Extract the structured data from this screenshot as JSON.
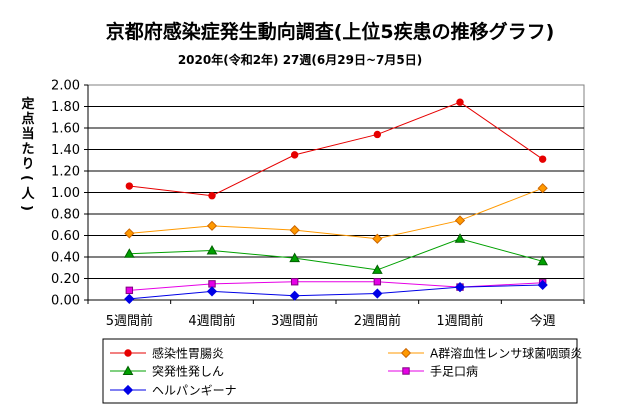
{
  "chart_data": {
    "type": "line",
    "title": "京都府感染症発生動向調査(上位5疾患の推移グラフ)",
    "subtitle": "2020年(令和2年) 27週(6月29日~7月5日)",
    "ylabel": "定点当たり(人)",
    "xlabel": "",
    "categories": [
      "5週間前",
      "4週間前",
      "3週間前",
      "2週間前",
      "1週間前",
      "今週"
    ],
    "yticks": [
      "0.00",
      "0.20",
      "0.40",
      "0.60",
      "0.80",
      "1.00",
      "1.20",
      "1.40",
      "1.60",
      "1.80",
      "2.00"
    ],
    "ylim": [
      0,
      2.0
    ],
    "grid": "horizontal",
    "legend_position": "bottom",
    "series": [
      {
        "name": "感染性胃腸炎",
        "color": "#e60000",
        "marker": "circle",
        "values": [
          1.06,
          0.97,
          1.35,
          1.54,
          1.84,
          1.31
        ]
      },
      {
        "name": "A群溶血性レンサ球菌咽頭炎",
        "color": "#ff9900",
        "marker": "diamond",
        "values": [
          0.62,
          0.69,
          0.65,
          0.57,
          0.74,
          1.04
        ]
      },
      {
        "name": "突発性発しん",
        "color": "#00a000",
        "marker": "triangle",
        "values": [
          0.43,
          0.46,
          0.39,
          0.28,
          0.57,
          0.36
        ]
      },
      {
        "name": "手足口病",
        "color": "#e600e6",
        "marker": "square",
        "values": [
          0.09,
          0.15,
          0.17,
          0.17,
          0.12,
          0.16
        ]
      },
      {
        "name": "ヘルパンギーナ",
        "color": "#0000e6",
        "marker": "diamond",
        "values": [
          0.01,
          0.08,
          0.04,
          0.06,
          0.12,
          0.14
        ]
      }
    ]
  }
}
